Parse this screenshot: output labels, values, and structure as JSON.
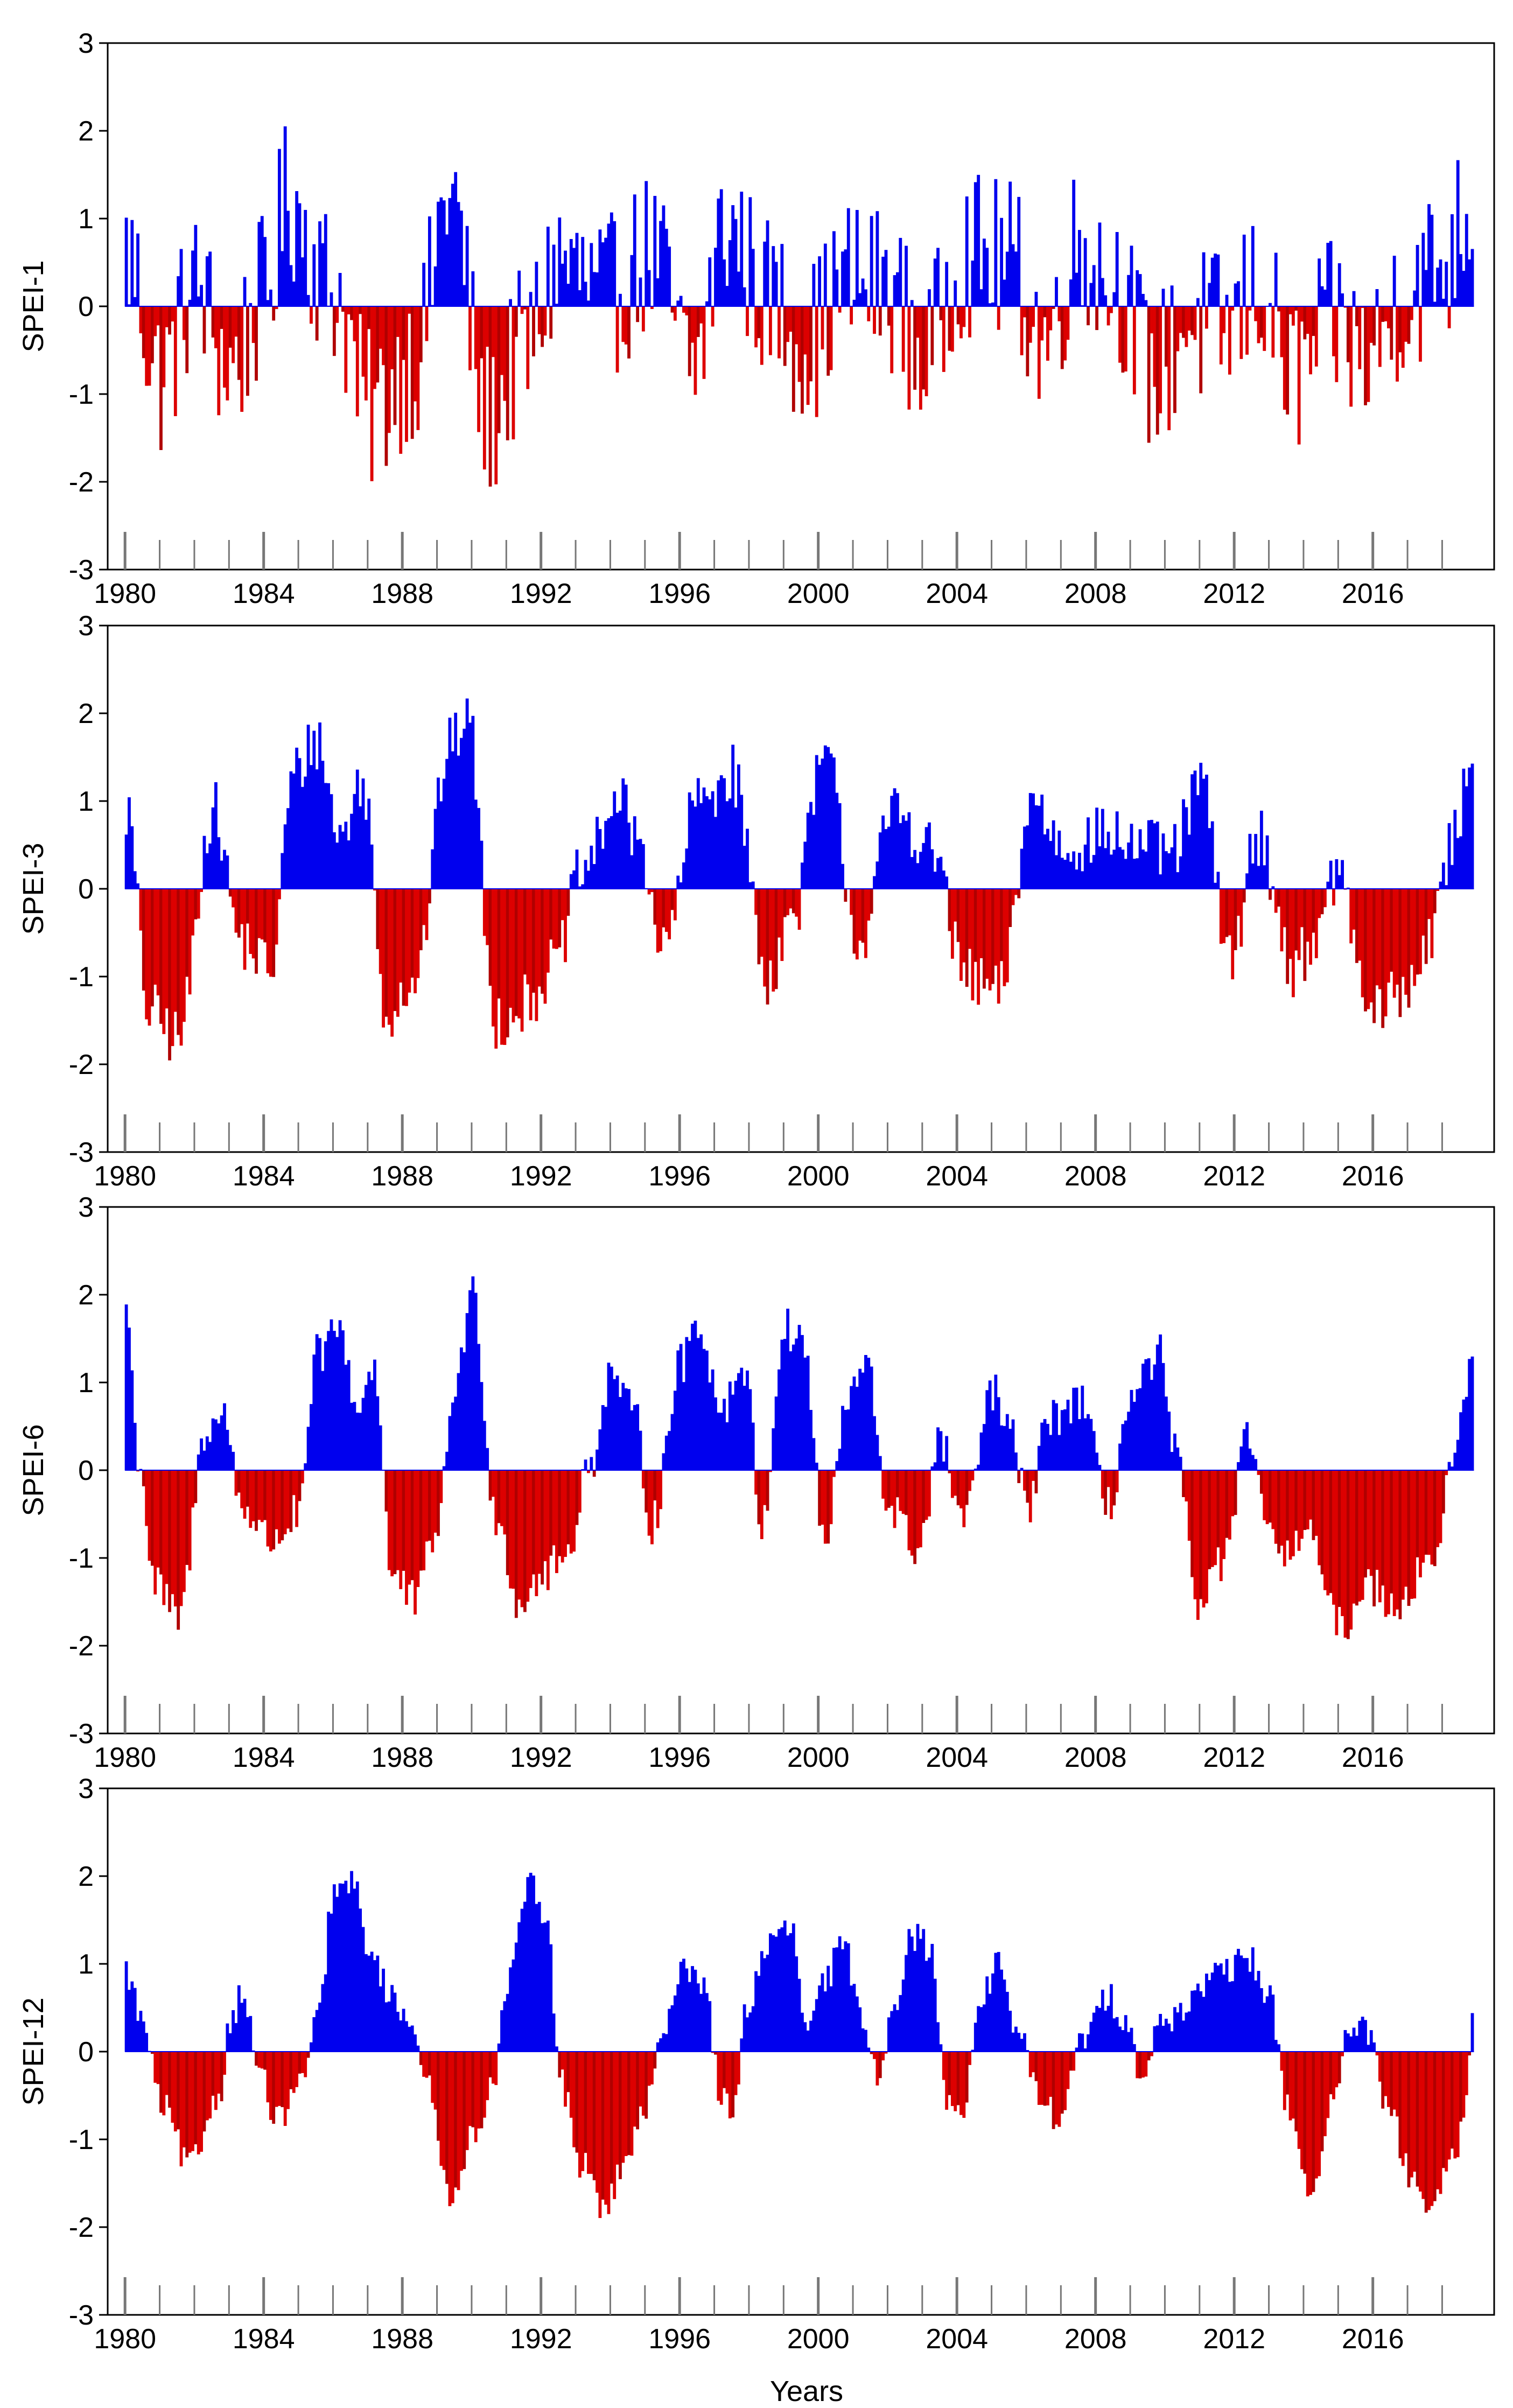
{
  "colors": {
    "positive": "#0000ee",
    "negative": "#dd0000",
    "negative_dark": "#b00000",
    "axis": "#000000"
  },
  "chart_data": [
    {
      "type": "bar",
      "ylabel": "SPEI-1",
      "ylim": [
        -3,
        3
      ],
      "yticks": [
        "3",
        "2",
        "1",
        "0",
        "-1",
        "-2",
        "-3"
      ],
      "xlim": [
        1979.5,
        2019.5
      ],
      "xticks": [
        "1980",
        "1984",
        "1988",
        "1992",
        "1996",
        "2000",
        "2004",
        "2008",
        "2012",
        "2016"
      ],
      "start_year": 1980,
      "months": 467,
      "scale": 1,
      "anchors": [
        [
          0,
          0.6
        ],
        [
          12,
          -0.8
        ],
        [
          24,
          0.2
        ],
        [
          36,
          -0.7
        ],
        [
          48,
          0.1
        ],
        [
          56,
          1.2
        ],
        [
          72,
          0.2
        ],
        [
          84,
          -1.2
        ],
        [
          100,
          -0.6
        ],
        [
          112,
          1.3
        ],
        [
          125,
          -1.3
        ],
        [
          138,
          -0.5
        ],
        [
          150,
          0.5
        ],
        [
          166,
          0.1
        ],
        [
          182,
          0.6
        ],
        [
          196,
          -0.7
        ],
        [
          208,
          0.9
        ],
        [
          222,
          0.1
        ],
        [
          236,
          -0.4
        ],
        [
          250,
          0.3
        ],
        [
          264,
          0.2
        ],
        [
          276,
          -0.6
        ],
        [
          290,
          0.6
        ],
        [
          306,
          0.5
        ],
        [
          318,
          -0.4
        ],
        [
          330,
          0.7
        ],
        [
          342,
          0.3
        ],
        [
          356,
          -0.8
        ],
        [
          368,
          -0.2
        ],
        [
          380,
          -0.3
        ],
        [
          392,
          0.2
        ],
        [
          404,
          -0.8
        ],
        [
          418,
          -0.2
        ],
        [
          430,
          -0.6
        ],
        [
          442,
          0.1
        ],
        [
          456,
          0.5
        ],
        [
          466,
          1.2
        ]
      ],
      "noise": 0.95,
      "xlabel": ""
    },
    {
      "type": "bar",
      "ylabel": "SPEI-3",
      "ylim": [
        -3,
        3
      ],
      "yticks": [
        "3",
        "2",
        "1",
        "0",
        "-1",
        "-2",
        "-3"
      ],
      "xlim": [
        1979.5,
        2019.5
      ],
      "xticks": [
        "1980",
        "1984",
        "1988",
        "1992",
        "1996",
        "2000",
        "2004",
        "2008",
        "2012",
        "2016"
      ],
      "start_year": 1980,
      "months": 467,
      "scale": 3,
      "anchors": [
        [
          0,
          0.9
        ],
        [
          8,
          -1.4
        ],
        [
          18,
          -1.7
        ],
        [
          30,
          0.9
        ],
        [
          40,
          -0.6
        ],
        [
          50,
          -0.9
        ],
        [
          58,
          1.3
        ],
        [
          66,
          1.7
        ],
        [
          74,
          0.6
        ],
        [
          82,
          1.2
        ],
        [
          90,
          -1.4
        ],
        [
          100,
          -1.0
        ],
        [
          112,
          1.6
        ],
        [
          118,
          2.0
        ],
        [
          128,
          -1.5
        ],
        [
          138,
          -1.3
        ],
        [
          148,
          -0.9
        ],
        [
          158,
          0.2
        ],
        [
          170,
          1.0
        ],
        [
          178,
          0.5
        ],
        [
          186,
          -0.7
        ],
        [
          198,
          1.0
        ],
        [
          210,
          1.3
        ],
        [
          222,
          -1.0
        ],
        [
          230,
          -0.4
        ],
        [
          242,
          1.5
        ],
        [
          254,
          -0.6
        ],
        [
          266,
          0.9
        ],
        [
          280,
          0.4
        ],
        [
          290,
          -1.0
        ],
        [
          302,
          -1.2
        ],
        [
          314,
          1.0
        ],
        [
          324,
          0.5
        ],
        [
          340,
          0.6
        ],
        [
          350,
          0.5
        ],
        [
          362,
          0.4
        ],
        [
          372,
          1.2
        ],
        [
          382,
          -0.8
        ],
        [
          392,
          0.6
        ],
        [
          404,
          -0.9
        ],
        [
          412,
          -0.5
        ],
        [
          420,
          0.2
        ],
        [
          430,
          -1.4
        ],
        [
          442,
          -1.2
        ],
        [
          452,
          -0.5
        ],
        [
          460,
          0.6
        ],
        [
          466,
          1.6
        ]
      ],
      "noise": 0.35,
      "xlabel": ""
    },
    {
      "type": "bar",
      "ylabel": "SPEI-6",
      "ylim": [
        -3,
        3
      ],
      "yticks": [
        "3",
        "2",
        "1",
        "0",
        "-1",
        "-2",
        "-3"
      ],
      "xlim": [
        1979.5,
        2019.5
      ],
      "xticks": [
        "1980",
        "1984",
        "1988",
        "1992",
        "1996",
        "2000",
        "2004",
        "2008",
        "2012",
        "2016"
      ],
      "start_year": 1980,
      "months": 467,
      "scale": 6,
      "anchors": [
        [
          0,
          1.9
        ],
        [
          4,
          0.2
        ],
        [
          10,
          -1.3
        ],
        [
          18,
          -1.7
        ],
        [
          28,
          0.5
        ],
        [
          34,
          0.6
        ],
        [
          40,
          -0.4
        ],
        [
          50,
          -0.8
        ],
        [
          60,
          -0.5
        ],
        [
          66,
          1.3
        ],
        [
          74,
          1.6
        ],
        [
          80,
          0.7
        ],
        [
          86,
          1.2
        ],
        [
          92,
          -1.2
        ],
        [
          100,
          -1.5
        ],
        [
          108,
          -0.6
        ],
        [
          114,
          1.0
        ],
        [
          120,
          2.0
        ],
        [
          128,
          -0.5
        ],
        [
          136,
          -1.5
        ],
        [
          144,
          -1.2
        ],
        [
          152,
          -1.0
        ],
        [
          160,
          0.0
        ],
        [
          168,
          1.1
        ],
        [
          176,
          0.6
        ],
        [
          182,
          -0.6
        ],
        [
          192,
          1.2
        ],
        [
          198,
          1.7
        ],
        [
          206,
          0.7
        ],
        [
          214,
          1.2
        ],
        [
          220,
          -0.6
        ],
        [
          228,
          1.6
        ],
        [
          234,
          1.5
        ],
        [
          242,
          -0.8
        ],
        [
          250,
          0.8
        ],
        [
          256,
          1.2
        ],
        [
          264,
          -0.4
        ],
        [
          274,
          -0.9
        ],
        [
          282,
          0.3
        ],
        [
          290,
          -0.6
        ],
        [
          300,
          0.9
        ],
        [
          306,
          0.4
        ],
        [
          312,
          -0.4
        ],
        [
          320,
          0.6
        ],
        [
          330,
          0.8
        ],
        [
          340,
          -0.4
        ],
        [
          348,
          0.8
        ],
        [
          358,
          1.3
        ],
        [
          362,
          0.3
        ],
        [
          372,
          -1.5
        ],
        [
          380,
          -1.0
        ],
        [
          388,
          0.3
        ],
        [
          394,
          -0.4
        ],
        [
          400,
          -1.1
        ],
        [
          408,
          -0.6
        ],
        [
          420,
          -1.8
        ],
        [
          430,
          -1.3
        ],
        [
          440,
          -1.5
        ],
        [
          452,
          -1.0
        ],
        [
          460,
          0.1
        ],
        [
          466,
          1.4
        ]
      ],
      "noise": 0.25,
      "xlabel": ""
    },
    {
      "type": "bar",
      "ylabel": "SPEI-12",
      "ylim": [
        -3,
        3
      ],
      "yticks": [
        "3",
        "2",
        "1",
        "0",
        "-1",
        "-2",
        "-3"
      ],
      "xlim": [
        1979.5,
        2019.5
      ],
      "xticks": [
        "1980",
        "1984",
        "1988",
        "1992",
        "1996",
        "2000",
        "2004",
        "2008",
        "2012",
        "2016"
      ],
      "start_year": 1980,
      "months": 467,
      "scale": 12,
      "anchors": [
        [
          0,
          0.9
        ],
        [
          6,
          0.3
        ],
        [
          12,
          -0.6
        ],
        [
          22,
          -1.3
        ],
        [
          32,
          -0.5
        ],
        [
          36,
          0.3
        ],
        [
          40,
          0.7
        ],
        [
          46,
          -0.2
        ],
        [
          52,
          -0.8
        ],
        [
          60,
          -0.4
        ],
        [
          66,
          0.3
        ],
        [
          72,
          1.8
        ],
        [
          78,
          1.9
        ],
        [
          86,
          1.0
        ],
        [
          92,
          0.6
        ],
        [
          100,
          0.3
        ],
        [
          104,
          -0.4
        ],
        [
          112,
          -1.6
        ],
        [
          120,
          -1.0
        ],
        [
          128,
          -0.2
        ],
        [
          132,
          0.8
        ],
        [
          140,
          1.9
        ],
        [
          146,
          1.4
        ],
        [
          150,
          -0.3
        ],
        [
          158,
          -1.3
        ],
        [
          166,
          -1.8
        ],
        [
          172,
          -1.3
        ],
        [
          178,
          -0.8
        ],
        [
          186,
          0.1
        ],
        [
          192,
          1.0
        ],
        [
          200,
          0.8
        ],
        [
          206,
          -0.5
        ],
        [
          210,
          -0.8
        ],
        [
          214,
          0.4
        ],
        [
          222,
          1.2
        ],
        [
          230,
          1.4
        ],
        [
          236,
          0.2
        ],
        [
          242,
          0.8
        ],
        [
          248,
          1.2
        ],
        [
          256,
          0.3
        ],
        [
          260,
          -0.3
        ],
        [
          266,
          0.6
        ],
        [
          272,
          1.3
        ],
        [
          278,
          1.2
        ],
        [
          284,
          -0.5
        ],
        [
          290,
          -0.6
        ],
        [
          296,
          0.6
        ],
        [
          302,
          1.0
        ],
        [
          308,
          0.3
        ],
        [
          316,
          -0.5
        ],
        [
          324,
          -0.8
        ],
        [
          330,
          0.1
        ],
        [
          340,
          0.6
        ],
        [
          346,
          0.4
        ],
        [
          352,
          -0.3
        ],
        [
          358,
          0.3
        ],
        [
          366,
          0.5
        ],
        [
          374,
          0.8
        ],
        [
          382,
          0.9
        ],
        [
          388,
          1.1
        ],
        [
          396,
          0.6
        ],
        [
          402,
          -0.6
        ],
        [
          410,
          -1.6
        ],
        [
          418,
          -0.6
        ],
        [
          424,
          0.3
        ],
        [
          430,
          0.2
        ],
        [
          436,
          -0.6
        ],
        [
          446,
          -1.5
        ],
        [
          452,
          -1.8
        ],
        [
          460,
          -1.2
        ],
        [
          464,
          -0.6
        ],
        [
          466,
          0.5
        ]
      ],
      "noise": 0.18,
      "xlabel": "Years"
    }
  ]
}
